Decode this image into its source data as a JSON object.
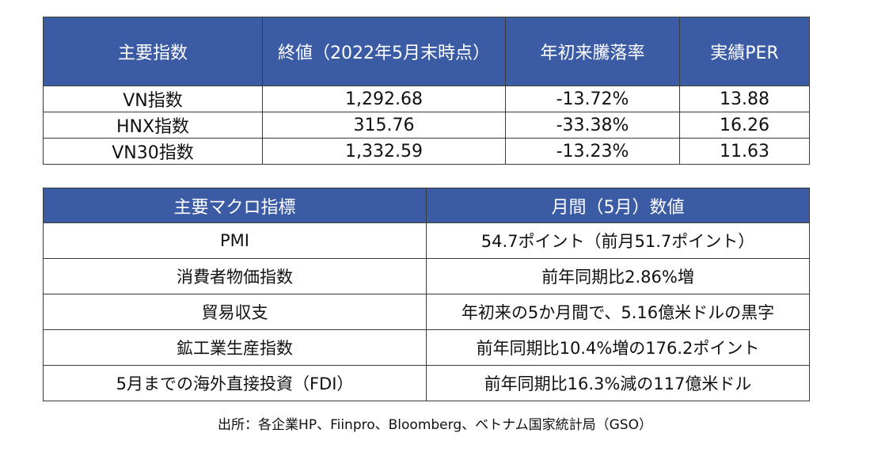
{
  "index_table": {
    "headers": [
      "主要指数",
      "終値（2022年5月末時点）",
      "年初来騰落率",
      "実績PER"
    ],
    "rows": [
      [
        "VN指数",
        "1,292.68",
        "-13.72%",
        "13.88"
      ],
      [
        "HNX指数",
        "315.76",
        "-33.38%",
        "16.26"
      ],
      [
        "VN30指数",
        "1,332.59",
        "-13.23%",
        "11.63"
      ]
    ]
  },
  "macro_table": {
    "headers": [
      "主要マクロ指標",
      "月間（5月）数値"
    ],
    "rows": [
      [
        "PMI",
        "54.7ポイント（前月51.7ポイント）"
      ],
      [
        "消費者物価指数",
        "前年同期比2.86%増"
      ],
      [
        "貿易収支",
        "年初来の5か月間で、5.16億米ドルの黒字"
      ],
      [
        "鉱工業生産指数",
        "前年同期比10.4%増の176.2ポイント"
      ],
      [
        "5月までの海外直接投資（FDI）",
        "前年同期比16.3%減の117億米ドル"
      ]
    ]
  },
  "source_note": "出所：各企業HP、Fiinpro、Bloomberg、ベトナム国家統計局（GSO）",
  "colors": {
    "header_bg": "#3b5ba5",
    "header_text": "#ffffff",
    "border": "#3a3a3a"
  }
}
